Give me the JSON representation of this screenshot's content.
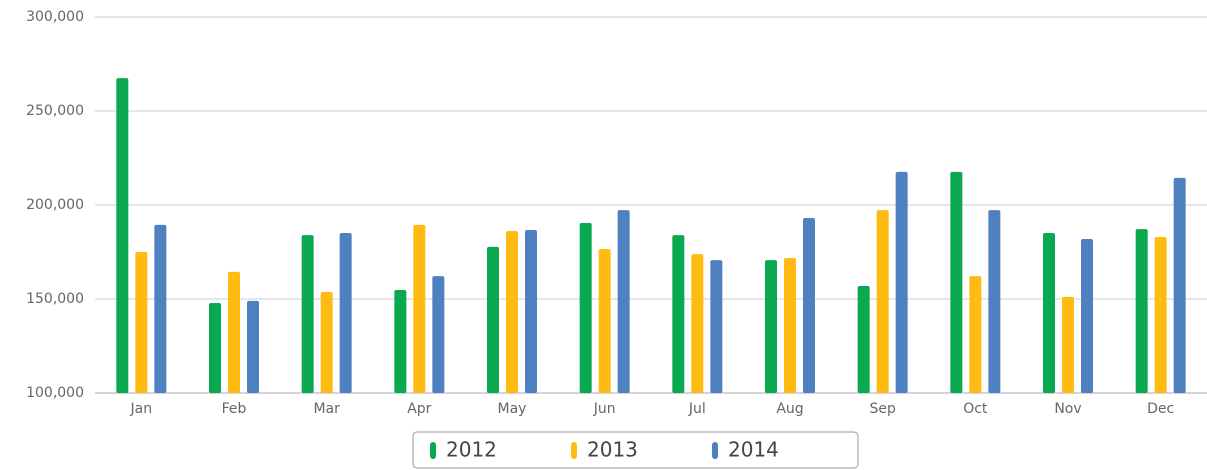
{
  "chart_data": {
    "type": "bar",
    "categories": [
      "Jan",
      "Feb",
      "Mar",
      "Apr",
      "May",
      "Jun",
      "Jul",
      "Aug",
      "Sep",
      "Oct",
      "Nov",
      "Dec"
    ],
    "series": [
      {
        "name": "2012",
        "color": "#0aa84f",
        "values": [
          267500,
          147900,
          184000,
          154800,
          177700,
          190400,
          184000,
          170700,
          156900,
          217600,
          185100,
          187200
        ]
      },
      {
        "name": "2013",
        "color": "#ffbb11",
        "values": [
          175000,
          164400,
          153700,
          189400,
          186200,
          176600,
          173900,
          171800,
          197300,
          162200,
          151100,
          183000
        ]
      },
      {
        "name": "2014",
        "color": "#4f81c0",
        "values": [
          189400,
          149000,
          185100,
          162200,
          186700,
          197300,
          170700,
          193100,
          217600,
          197300,
          181900,
          214400
        ]
      }
    ],
    "ylim": [
      100000,
      300000
    ],
    "yticks": [
      {
        "value": 100000,
        "label": "100,000"
      },
      {
        "value": 150000,
        "label": "150,000"
      },
      {
        "value": 200000,
        "label": "200,000"
      },
      {
        "value": 250000,
        "label": "250,000"
      },
      {
        "value": 300000,
        "label": "300,000"
      }
    ],
    "grid": true,
    "legend": "bottom"
  }
}
